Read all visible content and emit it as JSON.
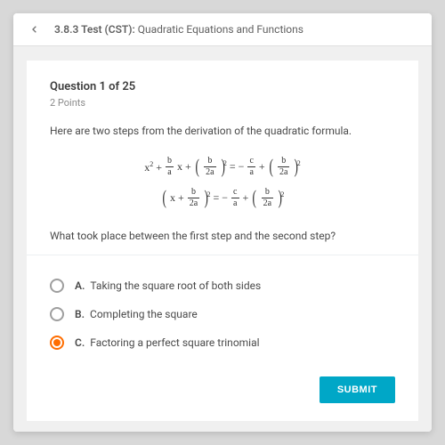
{
  "topbar": {
    "section_number": "3.8.3",
    "test_label": "Test (CST):",
    "test_name": "Quadratic Equations and Functions"
  },
  "question": {
    "header": "Question 1 of 25",
    "points": "2 Points",
    "prompt": "Here are two steps from the derivation of the quadratic formula.",
    "followup": "What took place between the first step and the second step?"
  },
  "choices": [
    {
      "letter": "A.",
      "text": "Taking the square root of both sides",
      "selected": false
    },
    {
      "letter": "B.",
      "text": "Completing the square",
      "selected": false
    },
    {
      "letter": "C.",
      "text": "Factoring a perfect square trinomial",
      "selected": true
    }
  ],
  "submit_label": "SUBMIT",
  "colors": {
    "accent": "#ff6d00",
    "submit": "#00a7c7",
    "text": "#4a4a4a",
    "muted": "#8a8a8a"
  }
}
